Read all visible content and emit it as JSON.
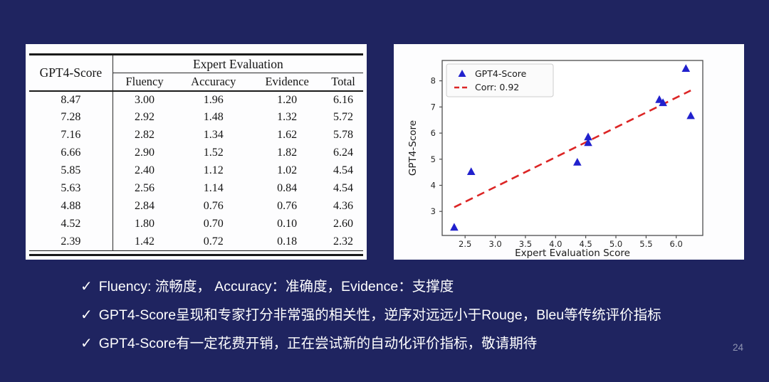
{
  "slide": {
    "background_color": "#1f2460",
    "page_number": "24"
  },
  "table": {
    "corner_header": "GPT4-Score",
    "group_header": "Expert Evaluation",
    "sub_headers": [
      "Fluency",
      "Accuracy",
      "Evidence",
      "Total"
    ],
    "rows": [
      [
        "8.47",
        "3.00",
        "1.96",
        "1.20",
        "6.16"
      ],
      [
        "7.28",
        "2.92",
        "1.48",
        "1.32",
        "5.72"
      ],
      [
        "7.16",
        "2.82",
        "1.34",
        "1.62",
        "5.78"
      ],
      [
        "6.66",
        "2.90",
        "1.52",
        "1.82",
        "6.24"
      ],
      [
        "5.85",
        "2.40",
        "1.12",
        "1.02",
        "4.54"
      ],
      [
        "5.63",
        "2.56",
        "1.14",
        "0.84",
        "4.54"
      ],
      [
        "4.88",
        "2.84",
        "0.76",
        "0.76",
        "4.36"
      ],
      [
        "4.52",
        "1.80",
        "0.70",
        "0.10",
        "2.60"
      ],
      [
        "2.39",
        "1.42",
        "0.72",
        "0.18",
        "2.32"
      ]
    ]
  },
  "chart_data": {
    "type": "scatter",
    "title": "",
    "xlabel": "Expert Evaluation Score",
    "ylabel": "GPT4-Score",
    "xlim": [
      2.12,
      6.44
    ],
    "ylim": [
      2.08,
      8.78
    ],
    "xticks": [
      2.5,
      3.0,
      3.5,
      4.0,
      4.5,
      5.0,
      5.5,
      6.0
    ],
    "xtick_labels": [
      "2.5",
      "3.0",
      "3.5",
      "4.0",
      "4.5",
      "5.0",
      "5.5",
      "6.0"
    ],
    "yticks": [
      3,
      4,
      5,
      6,
      7,
      8
    ],
    "ytick_labels": [
      "3",
      "4",
      "5",
      "6",
      "7",
      "8"
    ],
    "grid": false,
    "legend_position": "upper left",
    "spine_color": "#4d4d4d",
    "tick_label_color": "#262626",
    "series": [
      {
        "name": "GPT4-Score",
        "kind": "scatter",
        "marker": "triangle-up",
        "color": "#2121cd",
        "points": [
          [
            6.16,
            8.47
          ],
          [
            5.72,
            7.28
          ],
          [
            5.78,
            7.16
          ],
          [
            6.24,
            6.66
          ],
          [
            4.54,
            5.85
          ],
          [
            4.54,
            5.63
          ],
          [
            4.36,
            4.88
          ],
          [
            2.6,
            4.52
          ],
          [
            2.32,
            2.39
          ]
        ]
      },
      {
        "name": "Corr: 0.92",
        "kind": "line",
        "style": "dashed",
        "color": "#dc2525",
        "points": [
          [
            2.32,
            3.16
          ],
          [
            6.24,
            7.63
          ]
        ]
      }
    ]
  },
  "bullets": {
    "check_glyph": "✓",
    "items": [
      "Fluency: 流畅度， Accuracy：准确度，Evidence：支撑度",
      "GPT4-Score呈现和专家打分非常强的相关性，逆序对远远小于Rouge，Bleu等传统评价指标",
      "GPT4-Score有一定花费开销，正在尝试新的自动化评价指标，敬请期待"
    ]
  }
}
